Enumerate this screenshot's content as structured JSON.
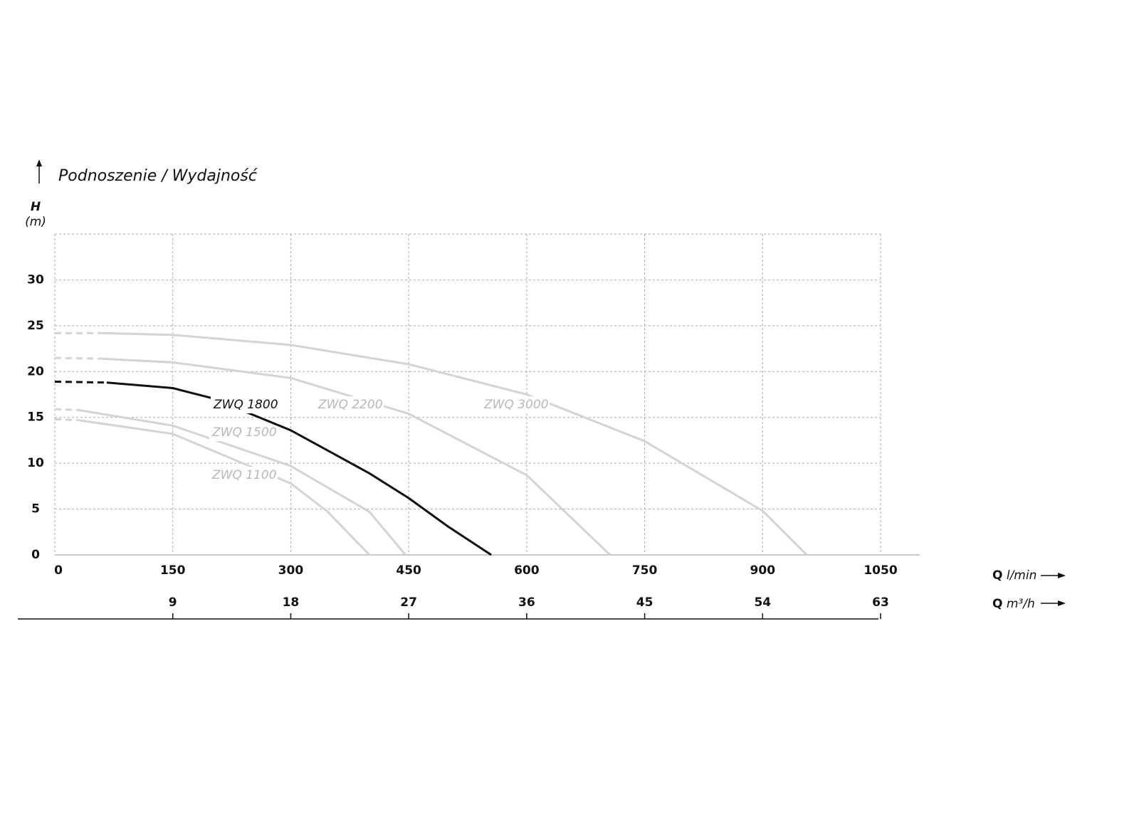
{
  "chart_data": {
    "type": "line",
    "title": "Podnoszenie / Wydajność",
    "y_label": "H",
    "y_unit": "(m)",
    "x_label": {
      "symbol": "Q",
      "unit": "l/min"
    },
    "x2_label": {
      "symbol": "Q",
      "unit": "m³/h"
    },
    "xlim": [
      0,
      1050
    ],
    "ylim": [
      0,
      35
    ],
    "xticks": [
      0,
      150,
      300,
      450,
      600,
      750,
      900,
      1050
    ],
    "yticks": [
      0,
      5,
      10,
      15,
      20,
      25,
      30
    ],
    "x2lim": [
      0,
      63
    ],
    "x2ticks": [
      9,
      18,
      27,
      36,
      45,
      54,
      63
    ],
    "grid": true,
    "series": [
      {
        "name": "ZWQ 1100",
        "color": "#d4d4d4",
        "x": [
          0,
          30,
          150,
          300,
          347,
          400
        ],
        "values": [
          14.8,
          14.7,
          13.2,
          7.8,
          4.7,
          0
        ]
      },
      {
        "name": "ZWQ 1500",
        "color": "#d4d4d4",
        "x": [
          0,
          30,
          150,
          300,
          400,
          446
        ],
        "values": [
          15.9,
          15.8,
          14.1,
          9.7,
          4.7,
          0
        ]
      },
      {
        "name": "ZWQ 1800",
        "color": "#111111",
        "x": [
          0,
          66,
          150,
          200,
          300,
          400,
          450,
          500,
          555
        ],
        "values": [
          18.9,
          18.8,
          18.2,
          17.1,
          13.6,
          8.9,
          6.2,
          3.1,
          0
        ]
      },
      {
        "name": "ZWQ 2200",
        "color": "#d4d4d4",
        "x": [
          0,
          60,
          150,
          300,
          450,
          600,
          706
        ],
        "values": [
          21.5,
          21.4,
          21,
          19.3,
          15.4,
          8.7,
          0
        ]
      },
      {
        "name": "ZWQ 3000",
        "color": "#d4d4d4",
        "x": [
          0,
          60,
          150,
          300,
          450,
          600,
          750,
          900,
          956
        ],
        "values": [
          24.2,
          24.2,
          24,
          22.9,
          20.8,
          17.5,
          12.4,
          4.8,
          0
        ]
      }
    ]
  }
}
